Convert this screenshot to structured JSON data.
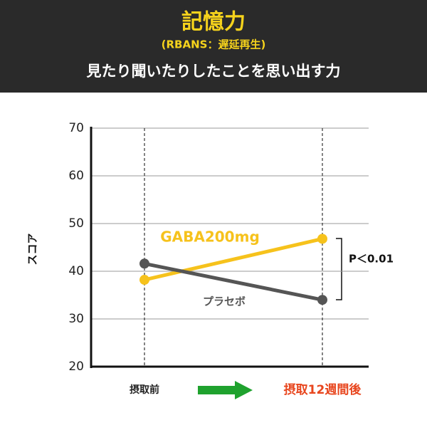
{
  "chart_data": {
    "type": "line",
    "title": "記憶力",
    "subtitle": "(RBANS：遅延再生)",
    "description": "見たり聞いたりしたことを思い出す力",
    "ylabel": "スコア",
    "categories": [
      "摂取前",
      "摂取12週間後"
    ],
    "series": [
      {
        "name": "GABA200mg",
        "color": "#f6c21c",
        "values": [
          38.2,
          46.8
        ]
      },
      {
        "name": "プラセボ",
        "color": "#555555",
        "values": [
          41.6,
          34.0
        ]
      }
    ],
    "ylim": [
      20,
      70
    ],
    "yticks": [
      20,
      30,
      40,
      50,
      60,
      70
    ],
    "grid": true,
    "annotation": "P＜0.01"
  }
}
